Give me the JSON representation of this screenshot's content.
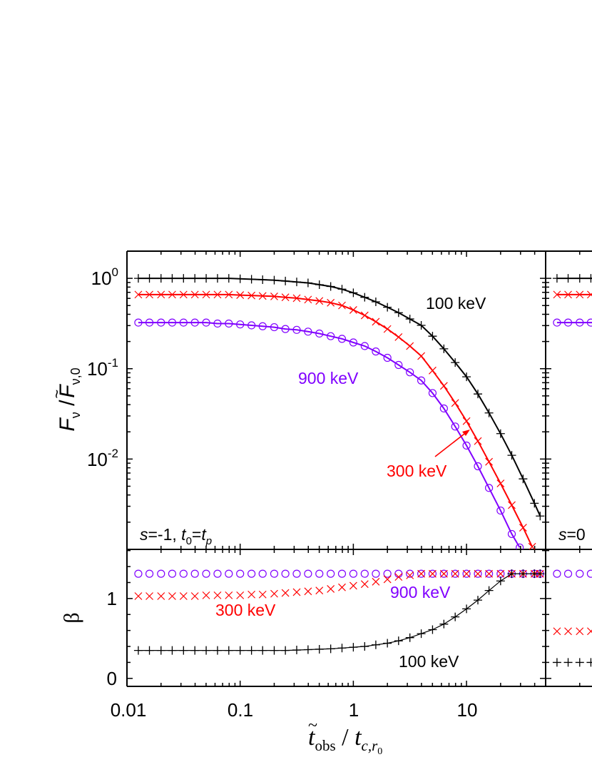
{
  "chart_data": {
    "type": "scatter",
    "xscale": "log",
    "xlim": [
      0.01,
      50
    ],
    "xticks": [
      0.01,
      0.1,
      1,
      10
    ],
    "xtick_labels": [
      "0.01",
      "0.1",
      "1",
      "10"
    ],
    "xlabel": {
      "t": "t",
      "tilde": "~",
      "obs": "obs",
      "slash": " / ",
      "t2": "t",
      "sub": "c,r",
      "subsub": "0"
    },
    "colors": {
      "100 keV": "#000000",
      "300 keV": "#ff0000",
      "900 keV": "#8000ff"
    },
    "panels": [
      {
        "id": "flux-left",
        "yscale": "log",
        "ylim": [
          0.001,
          2
        ],
        "ytick_labels": [
          {
            "base": "10",
            "exp": "0"
          },
          {
            "base": "10",
            "exp": "-1"
          },
          {
            "base": "10",
            "exp": "-2"
          }
        ],
        "ylabel": {
          "F": "F",
          "nu": "ν",
          "slash": " /",
          "F2": "F",
          "tilde": "~",
          "sub": "ν,0"
        },
        "annotation": {
          "s": "s",
          "eq": "=-1, ",
          "t": "t",
          "sub0": "0",
          "eq2": "=",
          "t2": "t",
          "subp": "p"
        },
        "labels": [
          "100 keV",
          "900 keV",
          "300 keV"
        ],
        "series": [
          {
            "name": "100 keV",
            "color": "#000000",
            "marker": "plus",
            "line": true,
            "x": [
              0.0126,
              0.0158,
              0.02,
              0.0251,
              0.0316,
              0.0398,
              0.0501,
              0.0631,
              0.0794,
              0.1,
              0.126,
              0.158,
              0.2,
              0.251,
              0.316,
              0.398,
              0.501,
              0.631,
              0.794,
              1,
              1.26,
              1.58,
              2,
              2.51,
              3.16,
              3.98,
              5.01,
              6.31,
              7.94,
              10,
              12.6,
              15.8,
              20,
              25.1,
              31.6,
              39.8,
              44.7
            ],
            "y": [
              1,
              1,
              1,
              1,
              1,
              1,
              1,
              1,
              1,
              0.989,
              0.977,
              0.966,
              0.955,
              0.933,
              0.912,
              0.891,
              0.851,
              0.813,
              0.759,
              0.692,
              0.617,
              0.55,
              0.479,
              0.417,
              0.355,
              0.302,
              0.229,
              0.166,
              0.117,
              0.0813,
              0.0525,
              0.0324,
              0.0191,
              0.011,
              0.00603,
              0.00324,
              0.00234
            ]
          },
          {
            "name": "300 keV",
            "color": "#ff0000",
            "marker": "cross",
            "line": true,
            "x": [
              0.0126,
              0.0158,
              0.02,
              0.0251,
              0.0316,
              0.0398,
              0.0501,
              0.0631,
              0.0794,
              0.1,
              0.126,
              0.158,
              0.2,
              0.251,
              0.316,
              0.398,
              0.501,
              0.631,
              0.794,
              1,
              1.26,
              1.58,
              2,
              2.51,
              3.16,
              3.98,
              5.01,
              6.31,
              7.94,
              10,
              12.6,
              15.8,
              20,
              25.1,
              31.6,
              38.0
            ],
            "y": [
              0.661,
              0.661,
              0.661,
              0.661,
              0.661,
              0.661,
              0.661,
              0.661,
              0.661,
              0.653,
              0.646,
              0.638,
              0.631,
              0.617,
              0.603,
              0.582,
              0.562,
              0.537,
              0.501,
              0.447,
              0.389,
              0.331,
              0.275,
              0.224,
              0.178,
              0.138,
              0.0955,
              0.0646,
              0.0417,
              0.0263,
              0.0158,
              0.00933,
              0.00537,
              0.00309,
              0.00174,
              0.00107
            ]
          },
          {
            "name": "900 keV",
            "color": "#8000ff",
            "marker": "circle",
            "line": true,
            "x": [
              0.0126,
              0.0158,
              0.02,
              0.0251,
              0.0316,
              0.0398,
              0.0501,
              0.0631,
              0.0794,
              0.1,
              0.126,
              0.158,
              0.2,
              0.251,
              0.316,
              0.398,
              0.501,
              0.631,
              0.794,
              1,
              1.26,
              1.58,
              2,
              2.51,
              3.16,
              3.98,
              5.01,
              6.31,
              7.94,
              10,
              12.6,
              15.8,
              20,
              25.1,
              29.5
            ],
            "y": [
              0.324,
              0.324,
              0.324,
              0.324,
              0.324,
              0.324,
              0.324,
              0.316,
              0.316,
              0.309,
              0.302,
              0.295,
              0.288,
              0.275,
              0.269,
              0.257,
              0.245,
              0.229,
              0.214,
              0.195,
              0.178,
              0.155,
              0.132,
              0.11,
              0.0912,
              0.0741,
              0.0537,
              0.0363,
              0.0229,
              0.0141,
              0.00832,
              0.00479,
              0.00269,
              0.00148,
              0.00105
            ]
          }
        ]
      },
      {
        "id": "beta-left",
        "yscale": "linear",
        "ylim": [
          -0.1,
          1.615
        ],
        "yticks": [
          0,
          1
        ],
        "ytick_labels": [
          "0",
          "1"
        ],
        "ylabel": "β",
        "labels": [
          "900 keV",
          "300 keV",
          "100 keV"
        ],
        "series": [
          {
            "name": "900 keV",
            "color": "#8000ff",
            "marker": "circle",
            "line": false,
            "x": [
              0.0126,
              0.0158,
              0.02,
              0.0251,
              0.0316,
              0.0398,
              0.0501,
              0.0631,
              0.0794,
              0.1,
              0.126,
              0.158,
              0.2,
              0.251,
              0.316,
              0.398,
              0.501,
              0.631,
              0.794,
              1,
              1.26,
              1.58,
              2,
              2.51,
              3.16,
              3.98,
              5.01,
              6.31,
              7.94,
              10,
              12.6,
              15.8,
              20,
              25.1,
              31.6,
              39.8,
              44.7
            ],
            "y": [
              1.31,
              1.31,
              1.31,
              1.31,
              1.31,
              1.31,
              1.31,
              1.31,
              1.31,
              1.31,
              1.31,
              1.31,
              1.31,
              1.31,
              1.31,
              1.31,
              1.31,
              1.31,
              1.31,
              1.31,
              1.31,
              1.31,
              1.31,
              1.31,
              1.31,
              1.31,
              1.31,
              1.31,
              1.31,
              1.31,
              1.31,
              1.31,
              1.31,
              1.31,
              1.31,
              1.31,
              1.31
            ]
          },
          {
            "name": "300 keV",
            "color": "#ff0000",
            "marker": "cross",
            "line": false,
            "x": [
              0.0126,
              0.0158,
              0.02,
              0.0251,
              0.0316,
              0.0398,
              0.0501,
              0.0631,
              0.0794,
              0.1,
              0.126,
              0.158,
              0.2,
              0.251,
              0.316,
              0.398,
              0.501,
              0.631,
              0.794,
              1,
              1.26,
              1.58,
              2,
              2.51,
              3.16,
              3.98,
              5.01,
              6.31,
              7.94,
              10,
              12.6,
              15.8,
              20,
              25.1,
              31.6,
              39.8,
              44.7
            ],
            "y": [
              1.03,
              1.03,
              1.03,
              1.03,
              1.03,
              1.03,
              1.04,
              1.04,
              1.04,
              1.04,
              1.05,
              1.05,
              1.06,
              1.07,
              1.08,
              1.09,
              1.1,
              1.12,
              1.14,
              1.16,
              1.18,
              1.21,
              1.24,
              1.27,
              1.29,
              1.31,
              1.31,
              1.31,
              1.31,
              1.31,
              1.31,
              1.31,
              1.31,
              1.31,
              1.31,
              1.31,
              1.31
            ]
          },
          {
            "name": "100 keV",
            "color": "#000000",
            "marker": "plus",
            "line": true,
            "x": [
              0.0126,
              0.0158,
              0.02,
              0.0251,
              0.0316,
              0.0398,
              0.0501,
              0.0631,
              0.0794,
              0.1,
              0.126,
              0.158,
              0.2,
              0.251,
              0.316,
              0.398,
              0.501,
              0.631,
              0.794,
              1,
              1.26,
              1.58,
              2,
              2.51,
              3.16,
              3.98,
              5.01,
              6.31,
              7.94,
              10,
              12.6,
              15.8,
              20,
              25.1,
              31.6,
              39.8,
              44.7
            ],
            "y": [
              0.35,
              0.35,
              0.35,
              0.35,
              0.35,
              0.35,
              0.35,
              0.35,
              0.35,
              0.35,
              0.35,
              0.35,
              0.35,
              0.35,
              0.355,
              0.36,
              0.365,
              0.37,
              0.38,
              0.39,
              0.4,
              0.42,
              0.44,
              0.47,
              0.51,
              0.56,
              0.61,
              0.68,
              0.77,
              0.87,
              0.98,
              1.1,
              1.22,
              1.31,
              1.31,
              1.31,
              1.31
            ]
          }
        ]
      },
      {
        "id": "flux-right",
        "yscale": "log",
        "ylim": [
          0.001,
          2
        ],
        "annotation": {
          "s": "s",
          "eq": "=0"
        },
        "series": [
          {
            "name": "100 keV",
            "color": "#000000",
            "marker": "plus",
            "line": true,
            "x": [
              0.0126,
              0.0158,
              0.02,
              0.0251,
              0.0316
            ],
            "y": [
              1,
              1,
              1,
              1,
              1
            ]
          },
          {
            "name": "300 keV",
            "color": "#ff0000",
            "marker": "cross",
            "line": true,
            "x": [
              0.0126,
              0.0158,
              0.02,
              0.0251,
              0.0316
            ],
            "y": [
              0.661,
              0.661,
              0.661,
              0.661,
              0.661
            ]
          },
          {
            "name": "900 keV",
            "color": "#8000ff",
            "marker": "circle",
            "line": true,
            "x": [
              0.0126,
              0.0158,
              0.02,
              0.0251,
              0.0316
            ],
            "y": [
              0.324,
              0.324,
              0.324,
              0.324,
              0.324
            ]
          }
        ]
      },
      {
        "id": "beta-right",
        "yscale": "linear",
        "ylim": [
          -0.1,
          1.615
        ],
        "series": [
          {
            "name": "900 keV",
            "color": "#8000ff",
            "marker": "circle",
            "line": false,
            "x": [
              0.0126,
              0.0158,
              0.02,
              0.0251,
              0.0316
            ],
            "y": [
              1.31,
              1.31,
              1.31,
              1.31,
              1.31
            ]
          },
          {
            "name": "300 keV",
            "color": "#ff0000",
            "marker": "cross",
            "line": false,
            "x": [
              0.0126,
              0.0158,
              0.02,
              0.0251,
              0.0316
            ],
            "y": [
              0.59,
              0.59,
              0.59,
              0.59,
              0.59
            ]
          },
          {
            "name": "100 keV",
            "color": "#000000",
            "marker": "plus",
            "line": false,
            "x": [
              0.0126,
              0.0158,
              0.02,
              0.0251,
              0.0316
            ],
            "y": [
              0.2,
              0.2,
              0.2,
              0.2,
              0.2
            ]
          }
        ]
      }
    ]
  }
}
